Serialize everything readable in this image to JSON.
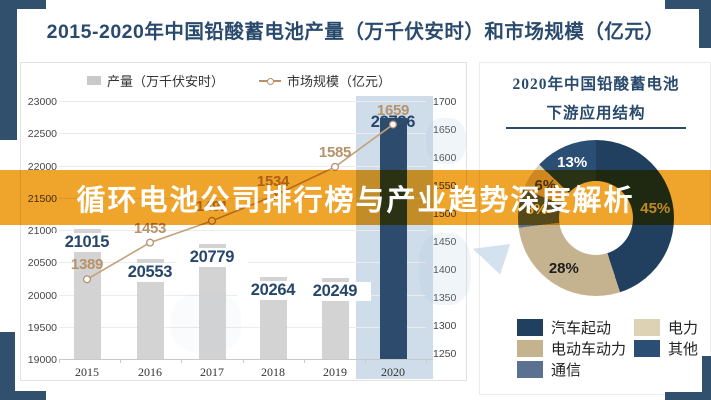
{
  "frame": {
    "accent_color": "#31506e"
  },
  "header": {
    "title": "2015-2020年中国铅酸蓄电池产量（万千伏安时）和市场规模（亿元）"
  },
  "banner": {
    "text": "循环电池公司排行榜与产业趋势深度解析",
    "color": "#efa42c"
  },
  "chart_data": [
    {
      "type": "bar",
      "subtype": "combo bar+line, dual y-axes",
      "categories": [
        "2015",
        "2016",
        "2017",
        "2018",
        "2019",
        "2020"
      ],
      "series": [
        {
          "name": "产量（万千伏安时）",
          "type": "bar",
          "axis": "left",
          "values": [
            21015,
            20553,
            20779,
            20264,
            20249,
            22736
          ]
        },
        {
          "name": "市场规模（亿元）",
          "type": "line",
          "axis": "right",
          "values": [
            1389,
            1453,
            1491,
            1534,
            1585,
            1659
          ],
          "hidden_label_indexes": [
            2
          ]
        }
      ],
      "left_axis": {
        "min": 19000,
        "max": 23000,
        "ticks": [
          23000,
          22500,
          22000,
          21500,
          21000,
          20500,
          20000,
          19500,
          19000
        ]
      },
      "right_axis": {
        "min": 1250,
        "max": 1700,
        "ticks": [
          1700,
          1650,
          1600,
          1550,
          1500,
          1450,
          1400,
          1350,
          1300,
          1250
        ]
      },
      "highlight_category": "2020",
      "colors": {
        "bar": "#d3d3d3",
        "bar_highlight": "#2d4b6d",
        "line": "#c3a27a",
        "marker_fill": "#ffffff",
        "value_label_bar": "#26466b",
        "value_label_line": "#b8926b",
        "highlight_band": "#cfdce9"
      }
    },
    {
      "type": "pie",
      "donut": true,
      "title": "2020年中国铅酸蓄电池下游应用结构",
      "labels": [
        "汽车起动",
        "电动车动力",
        "通信",
        "电力",
        "其他"
      ],
      "values": [
        45,
        28,
        8,
        6,
        13
      ],
      "colors": [
        "#21405f",
        "#c5b28e",
        "#5a7191",
        "#ded2b4",
        "#2b4e74"
      ],
      "label_colors": [
        "#cdd5dd",
        "#1d1d1d",
        "#ffffff",
        "#4a4a4a",
        "#ffffff"
      ],
      "legend_position": "bottom"
    }
  ],
  "right_panel": {
    "title_line1": "2020年中国铅酸蓄电池",
    "title_line2": "下游应用结构",
    "legend_rows": [
      [
        {
          "label": "汽车起动",
          "color": "#21405f"
        },
        {
          "label": "电力",
          "color": "#ded2b4"
        }
      ],
      [
        {
          "label": "电动车动力",
          "color": "#c5b28e"
        },
        {
          "label": "其他",
          "color": "#2b4e74"
        }
      ],
      [
        {
          "label": "通信",
          "color": "#5a7191"
        }
      ]
    ]
  }
}
